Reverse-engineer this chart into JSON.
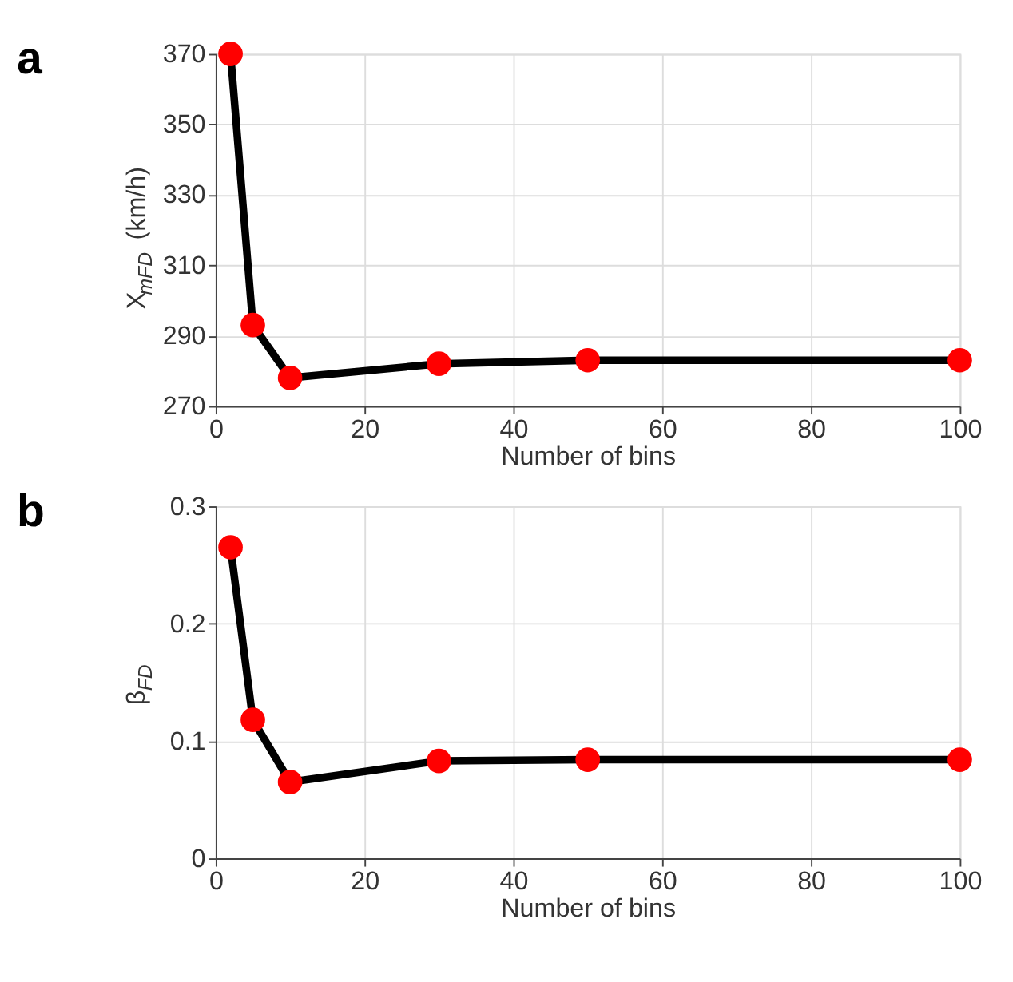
{
  "chart_data": [
    {
      "type": "line",
      "title": "a",
      "x": [
        2,
        5,
        10,
        30,
        50,
        100
      ],
      "series": [
        {
          "color": "#000000",
          "colors": [
            "#ff0000",
            "#ff0000",
            "#ff0000",
            "#ff0000",
            "#ff0000",
            "#ff0000"
          ],
          "values": [
            370,
            293,
            278,
            282,
            283,
            283
          ]
        }
      ],
      "xlabel": "Number of bins",
      "ylabel": "X$_{mFD}$ (km/h)",
      "xlim": [
        0,
        100
      ],
      "xticks": [
        0,
        20,
        40,
        60,
        80,
        100
      ],
      "ylim": [
        270,
        370
      ],
      "yticks": [
        270,
        290,
        310,
        330,
        350,
        370
      ],
      "grid": true,
      "marker": "circle",
      "line_style": "solid"
    },
    {
      "type": "line",
      "title": "b",
      "x": [
        2,
        5,
        10,
        30,
        50,
        100
      ],
      "series": [
        {
          "color": "#000000",
          "colors": [
            "#ff0000",
            "#ff0000",
            "#ff0000",
            "#ff0000",
            "#ff0000",
            "#ff0000"
          ],
          "values": [
            0.265,
            0.118,
            0.065,
            0.083,
            0.084,
            0.084
          ]
        }
      ],
      "xlabel": "Number of bins",
      "ylabel": "β$_{FD}$",
      "xlim": [
        0,
        100
      ],
      "xticks": [
        0,
        20,
        40,
        60,
        80,
        100
      ],
      "ylim": [
        0,
        0.3
      ],
      "yticks": [
        0,
        0.1,
        0.2,
        0.3
      ],
      "grid": true,
      "marker": "circle",
      "line_style": "solid"
    }
  ]
}
